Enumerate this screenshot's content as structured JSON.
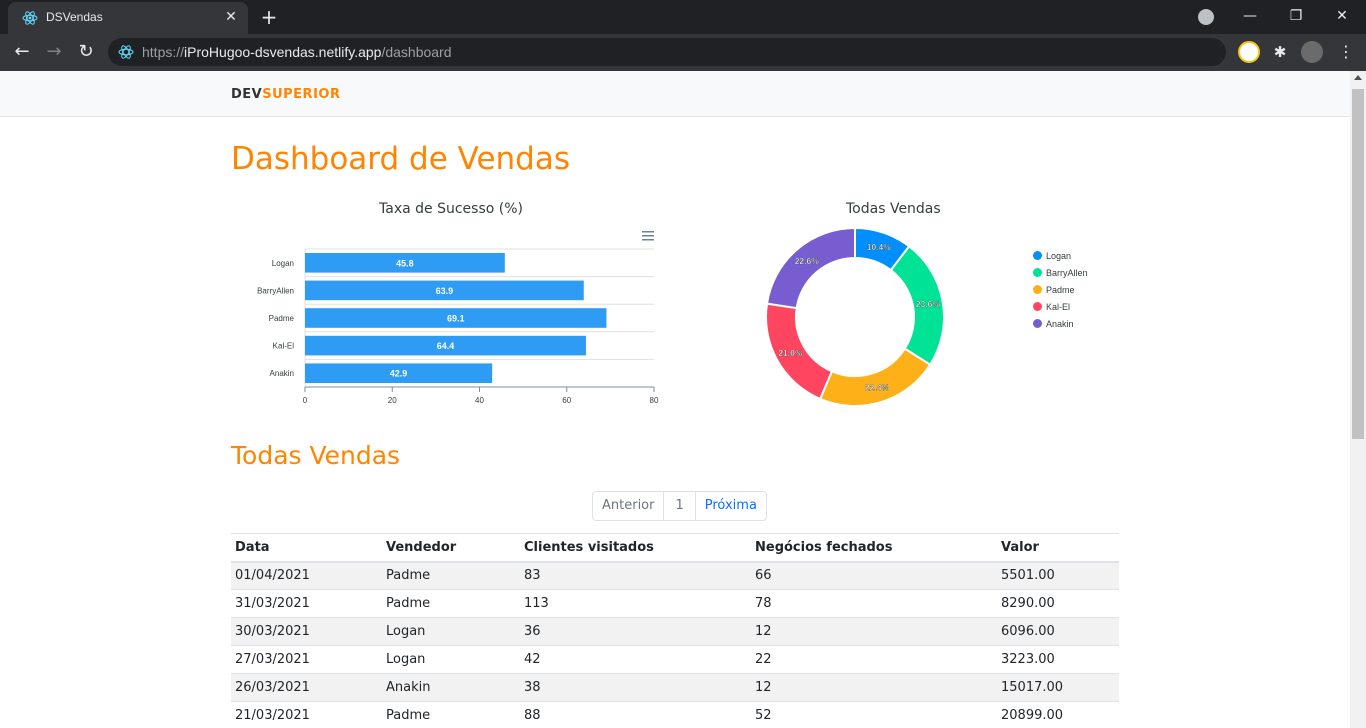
{
  "browser": {
    "tab_title": "DSVendas",
    "url_scheme": "https://",
    "url_host": "iProHugoo-dsvendas.netlify.app",
    "url_path": "/dashboard"
  },
  "navbar": {
    "logo_dev": "DEV",
    "logo_superior": "SUPERIOR"
  },
  "page": {
    "title": "Dashboard de Vendas",
    "sales_title": "Todas Vendas"
  },
  "bar_chart": {
    "title": "Taxa de Sucesso (%)",
    "colors": {
      "bar": "#2e9bf5"
    },
    "chart_data": {
      "type": "bar",
      "orientation": "horizontal",
      "categories": [
        "Logan",
        "BarryAllen",
        "Padme",
        "Kal-El",
        "Anakin"
      ],
      "values": [
        45.8,
        63.9,
        69.1,
        64.4,
        42.9
      ],
      "xlim": [
        0,
        80
      ],
      "xticks": [
        "0",
        "20",
        "40",
        "60",
        "80"
      ],
      "value_labels": [
        "45.8",
        "63.9",
        "69.1",
        "64.4",
        "42.9"
      ]
    }
  },
  "donut_chart": {
    "title": "Todas Vendas",
    "chart_data": {
      "type": "pie",
      "donut": true,
      "categories": [
        "Logan",
        "BarryAllen",
        "Padme",
        "Kal-El",
        "Anakin"
      ],
      "values": [
        10.4,
        23.6,
        22.4,
        21.0,
        22.6
      ],
      "value_labels": [
        "10.4%",
        "23.6%",
        "22.4%",
        "21.0%",
        "22.6%"
      ],
      "colors": [
        "#008ffb",
        "#00e396",
        "#feb019",
        "#ff4560",
        "#775dd0"
      ],
      "legend_position": "right"
    }
  },
  "pagination": {
    "prev": "Anterior",
    "current": "1",
    "next": "Próxima"
  },
  "table": {
    "headers": [
      "Data",
      "Vendedor",
      "Clientes visitados",
      "Negócios fechados",
      "Valor"
    ],
    "rows": [
      [
        "01/04/2021",
        "Padme",
        "83",
        "66",
        "5501.00"
      ],
      [
        "31/03/2021",
        "Padme",
        "113",
        "78",
        "8290.00"
      ],
      [
        "30/03/2021",
        "Logan",
        "36",
        "12",
        "6096.00"
      ],
      [
        "27/03/2021",
        "Logan",
        "42",
        "22",
        "3223.00"
      ],
      [
        "26/03/2021",
        "Anakin",
        "38",
        "12",
        "15017.00"
      ],
      [
        "21/03/2021",
        "Padme",
        "88",
        "52",
        "20899.00"
      ]
    ]
  }
}
